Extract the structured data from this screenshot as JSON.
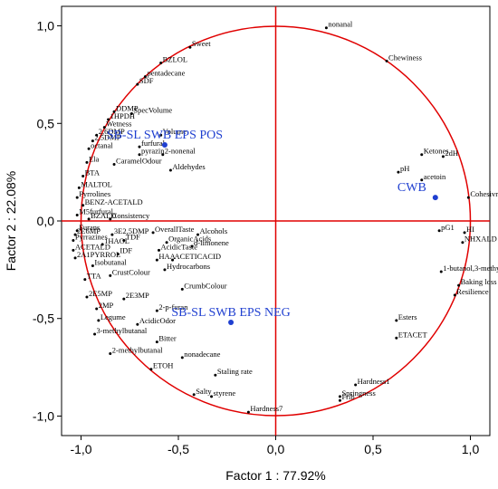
{
  "chart_data": {
    "type": "scatter",
    "xlabel": "Factor 1 : 77.92%",
    "ylabel": "Factor 2 : 22.08%",
    "xlim": [
      -1.1,
      1.1
    ],
    "ylim": [
      -1.1,
      1.1
    ],
    "xticks": [
      "-1,0",
      "-0,5",
      "0,0",
      "0,5",
      "1,0"
    ],
    "xtick_values": [
      -1.0,
      -0.5,
      0.0,
      0.5,
      1.0
    ],
    "yticks": [
      "1,0",
      "0,5",
      "0,0",
      "-0,5",
      "-1,0"
    ],
    "ytick_values": [
      1.0,
      0.5,
      0.0,
      -0.5,
      -1.0
    ],
    "unit_circle": true,
    "axis_color": "#e00000",
    "object_color": "#1f3fd0",
    "objects": [
      {
        "name": "SB-SL SWB EPS POS",
        "x": -0.57,
        "y": 0.39
      },
      {
        "name": "CWB",
        "x": 0.82,
        "y": 0.12
      },
      {
        "name": "SB-SL SWB EPS NEG",
        "x": -0.23,
        "y": -0.52
      }
    ],
    "variables": [
      {
        "name": "nonanal",
        "x": 0.26,
        "y": 0.99
      },
      {
        "name": "Chewiness",
        "x": 0.57,
        "y": 0.82
      },
      {
        "name": "Sweet",
        "x": -0.44,
        "y": 0.89
      },
      {
        "name": "BZLOL",
        "x": -0.59,
        "y": 0.81
      },
      {
        "name": "pentadecane",
        "x": -0.67,
        "y": 0.74
      },
      {
        "name": "SDF",
        "x": -0.71,
        "y": 0.7
      },
      {
        "name": "DDMP",
        "x": -0.83,
        "y": 0.56
      },
      {
        "name": "1HPDH",
        "x": -0.86,
        "y": 0.52
      },
      {
        "name": "SpecVolume",
        "x": -0.74,
        "y": 0.55
      },
      {
        "name": "Wetness",
        "x": -0.88,
        "y": 0.48
      },
      {
        "name": "2,6DMP",
        "x": -0.92,
        "y": 0.44
      },
      {
        "name": "2,5DMP",
        "x": -0.94,
        "y": 0.41
      },
      {
        "name": "octanal",
        "x": -0.96,
        "y": 0.37
      },
      {
        "name": "Ela",
        "x": -0.97,
        "y": 0.3
      },
      {
        "name": "BTA",
        "x": -0.99,
        "y": 0.23
      },
      {
        "name": "MALTOL",
        "x": -1.01,
        "y": 0.17
      },
      {
        "name": "Pyrrolines",
        "x": -1.02,
        "y": 0.12
      },
      {
        "name": "BENZ-ACETALD",
        "x": -0.99,
        "y": 0.08
      },
      {
        "name": "M5furfural",
        "x": -1.02,
        "y": 0.03
      },
      {
        "name": "BZALD",
        "x": -0.96,
        "y": 0.01
      },
      {
        "name": "Consistency",
        "x": -0.85,
        "y": 0.01
      },
      {
        "name": "Volume",
        "x": -0.59,
        "y": 0.44
      },
      {
        "name": "furfural",
        "x": -0.7,
        "y": 0.38
      },
      {
        "name": "pyrazin",
        "x": -0.7,
        "y": 0.34
      },
      {
        "name": "2-nonenal",
        "x": -0.58,
        "y": 0.34
      },
      {
        "name": "CaramelOdour",
        "x": -0.83,
        "y": 0.29
      },
      {
        "name": "Aldehydes",
        "x": -0.54,
        "y": 0.26
      },
      {
        "name": "Ketones",
        "x": 0.75,
        "y": 0.34
      },
      {
        "name": "pH",
        "x": 0.63,
        "y": 0.25
      },
      {
        "name": "acetoin",
        "x": 0.75,
        "y": 0.21
      },
      {
        "name": "2dH",
        "x": 0.86,
        "y": 0.33
      },
      {
        "name": "Cohesivness",
        "x": 0.99,
        "y": 0.12
      },
      {
        "name": "Furans",
        "x": -1.02,
        "y": -0.05
      },
      {
        "name": "2E6MP",
        "x": -1.03,
        "y": -0.07
      },
      {
        "name": "3E2,5DMP",
        "x": -0.84,
        "y": -0.07
      },
      {
        "name": "OverallTaste",
        "x": -0.63,
        "y": -0.06
      },
      {
        "name": "Alcohols",
        "x": -0.4,
        "y": -0.07
      },
      {
        "name": "TDF",
        "x": -0.78,
        "y": -0.1
      },
      {
        "name": "Pyrrazines",
        "x": -1.04,
        "y": -0.1
      },
      {
        "name": "OrganicAcids",
        "x": -0.56,
        "y": -0.11
      },
      {
        "name": "1HAOL",
        "x": -0.89,
        "y": -0.12
      },
      {
        "name": "d-limonene",
        "x": -0.43,
        "y": -0.13
      },
      {
        "name": "AcidicTaste",
        "x": -0.6,
        "y": -0.15
      },
      {
        "name": "IDF",
        "x": -0.81,
        "y": -0.17
      },
      {
        "name": "ACETALD",
        "x": -1.04,
        "y": -0.15
      },
      {
        "name": "2A1PYRROL",
        "x": -1.03,
        "y": -0.19
      },
      {
        "name": "HAA",
        "x": -0.61,
        "y": -0.2
      },
      {
        "name": "ACETICACID",
        "x": -0.53,
        "y": -0.2
      },
      {
        "name": "Isobutanal",
        "x": -0.94,
        "y": -0.23
      },
      {
        "name": "Hydrocarbons",
        "x": -0.57,
        "y": -0.25
      },
      {
        "name": "CrustColour",
        "x": -0.85,
        "y": -0.28
      },
      {
        "name": "TTA",
        "x": -0.98,
        "y": -0.3
      },
      {
        "name": "CrumbColour",
        "x": -0.48,
        "y": -0.35
      },
      {
        "name": "2E5MP",
        "x": -0.97,
        "y": -0.39
      },
      {
        "name": "2E3MP",
        "x": -0.78,
        "y": -0.4
      },
      {
        "name": "2MP",
        "x": -0.92,
        "y": -0.45
      },
      {
        "name": "2-p-furan",
        "x": -0.61,
        "y": -0.46
      },
      {
        "name": "Legume",
        "x": -0.91,
        "y": -0.51
      },
      {
        "name": "AcidicOdor",
        "x": -0.71,
        "y": -0.53
      },
      {
        "name": "3-methylbutanal",
        "x": -0.93,
        "y": -0.58
      },
      {
        "name": "Bitter",
        "x": -0.61,
        "y": -0.62
      },
      {
        "name": "2-methylbutanal",
        "x": -0.85,
        "y": -0.68
      },
      {
        "name": "nonadecane",
        "x": -0.48,
        "y": -0.7
      },
      {
        "name": "ETOH",
        "x": -0.64,
        "y": -0.76
      },
      {
        "name": "Staling rate",
        "x": -0.31,
        "y": -0.79
      },
      {
        "name": "Salty",
        "x": -0.42,
        "y": -0.89
      },
      {
        "name": "styrene",
        "x": -0.33,
        "y": -0.9
      },
      {
        "name": "Hardness7",
        "x": -0.14,
        "y": -0.98
      },
      {
        "name": "Hardness1",
        "x": 0.41,
        "y": -0.84
      },
      {
        "name": "Springness",
        "x": 0.33,
        "y": -0.9
      },
      {
        "name": "Frib",
        "x": 0.33,
        "y": -0.92
      },
      {
        "name": "ETACET",
        "x": 0.62,
        "y": -0.6
      },
      {
        "name": "Esters",
        "x": 0.62,
        "y": -0.51
      },
      {
        "name": "Resilience",
        "x": 0.92,
        "y": -0.38
      },
      {
        "name": "Baking loss",
        "x": 0.94,
        "y": -0.33
      },
      {
        "name": "1-butanol,3-methyl-",
        "x": 0.85,
        "y": -0.26
      },
      {
        "name": "NHXALD",
        "x": 0.96,
        "y": -0.11
      },
      {
        "name": "pG1",
        "x": 0.84,
        "y": -0.05
      },
      {
        "name": "HI",
        "x": 0.97,
        "y": -0.06
      }
    ]
  }
}
